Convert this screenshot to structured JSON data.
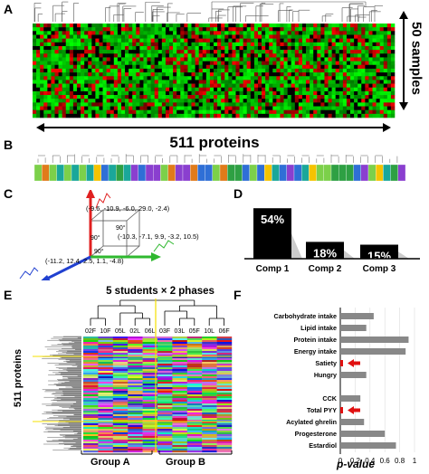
{
  "panels": {
    "A": {
      "label": "A",
      "cols_label": "511 proteins",
      "rows_label": "50 samples"
    },
    "B": {
      "label": "B",
      "colors": {
        "green": "#2ea043",
        "violet": "#8a3fcf",
        "yellow": "#f5c300",
        "blue": "#2f6fd6",
        "teal": "#1aa79a",
        "lightgreen": "#7cd04a"
      }
    },
    "C": {
      "label": "C",
      "angle": "90°",
      "vec_red": "(-9.6, -10.9, -6.0, 29.0, -2.4)",
      "vec_green": "(-10.3, -7.1, 9.9, -3.2, 10.5)",
      "vec_blue": "(-11.2, 12.4, 2.5, 1.1, -4.8)"
    },
    "D": {
      "label": "D"
    },
    "E": {
      "label": "E",
      "title": "5 students × 2 phases",
      "sample_labels": [
        "02F",
        "10F",
        "05L",
        "02L",
        "06L",
        "03F",
        "03L",
        "05F",
        "10L",
        "06F"
      ],
      "rows_label": "511 proteins",
      "group_a": "Group A",
      "group_b": "Group B"
    },
    "F": {
      "label": "F"
    }
  },
  "chart_data": [
    {
      "type": "bar",
      "categories": [
        "Comp 1",
        "Comp 2",
        "Comp 3"
      ],
      "values": [
        54,
        18,
        15
      ],
      "value_labels": [
        "54%",
        "18%",
        "15%"
      ],
      "ylim": [
        0,
        60
      ]
    },
    {
      "type": "bar",
      "orientation": "horizontal",
      "categories": [
        "Carbohydrate intake",
        "Lipid intake",
        "Protein intake",
        "Energy intake",
        "Satiety",
        "Hungry",
        "",
        "CCK",
        "Total PYY",
        "Acylated ghrelin",
        "Progesterone",
        "Estardiol"
      ],
      "values": [
        0.45,
        0.35,
        0.92,
        0.88,
        0.02,
        0.35,
        null,
        0.27,
        0.02,
        0.32,
        0.6,
        0.75
      ],
      "highlight": [
        "Satiety",
        "Total PYY"
      ],
      "xlabel": "p-value",
      "xticks": [
        "0",
        "0.2",
        "0.4",
        "0.6",
        "0.8",
        "1"
      ],
      "xlim": [
        0,
        1
      ]
    }
  ]
}
